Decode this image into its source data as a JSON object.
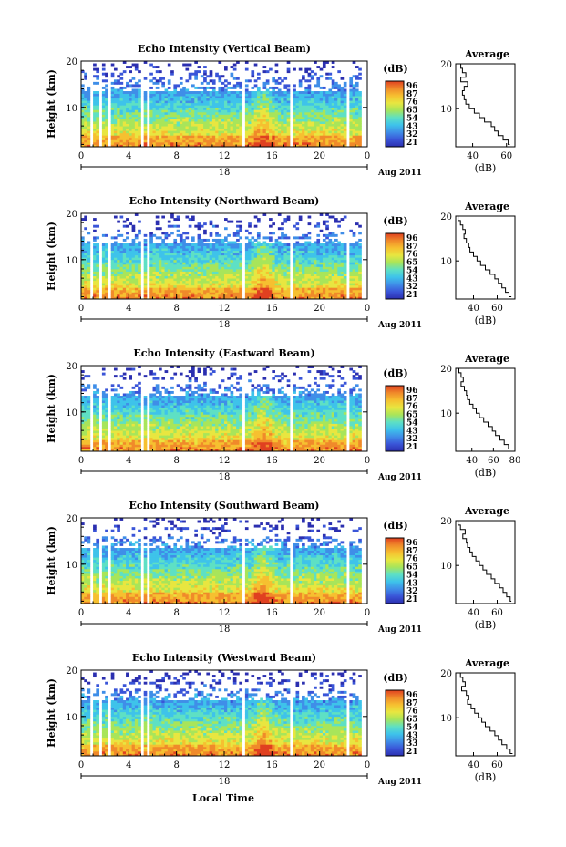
{
  "figure": {
    "xlabel": "Local Time",
    "date_label": "18",
    "month_label": "Aug 2011",
    "unit_label": "(dB)",
    "colors": {
      "stops": [
        "#2b2fb0",
        "#3a55d8",
        "#3f8ee8",
        "#3ec3ea",
        "#5ee0c4",
        "#a8e55a",
        "#e8e640",
        "#f6c030",
        "#f08a2a",
        "#e04020"
      ]
    }
  },
  "chart_data": [
    {
      "type": "heatmap",
      "title": "Echo Intensity (Vertical Beam)",
      "ylabel": "Height (km)",
      "x_ticks": [
        "0",
        "4",
        "8",
        "12",
        "16",
        "20",
        "0"
      ],
      "xlim": [
        0,
        24
      ],
      "y_ticks": [
        "20",
        "10"
      ],
      "ylim": [
        1.5,
        20
      ],
      "colorbar_ticks": [
        "96",
        "87",
        "76",
        "65",
        "54",
        "43",
        "32",
        "21"
      ],
      "gaps_hours": [
        [
          0.75,
          1.0
        ],
        [
          1.5,
          1.7
        ],
        [
          2.35,
          2.55
        ],
        [
          4.4,
          4.6
        ],
        [
          5.0,
          5.2
        ],
        [
          5.5,
          5.7
        ],
        [
          13.55,
          13.85
        ],
        [
          17.4,
          17.7
        ],
        [
          22.3,
          22.55
        ],
        [
          23.6,
          24.0
        ]
      ],
      "profile": {
        "title": "Average",
        "xlabel": "(dB)",
        "x_ticks": [
          "40",
          "60"
        ],
        "xlim": [
          30,
          65
        ],
        "y_ticks": [
          "20",
          "10"
        ],
        "ylim": [
          1.5,
          20
        ],
        "height_km": [
          20,
          19,
          18,
          17,
          16,
          15,
          14,
          13,
          12,
          11,
          10,
          9,
          8,
          7,
          6,
          5,
          4,
          3,
          2
        ],
        "average_db": [
          33,
          34,
          36,
          33,
          37,
          35,
          34,
          35,
          36,
          38,
          41,
          44,
          47,
          51,
          53,
          55,
          58,
          61,
          62
        ]
      }
    },
    {
      "type": "heatmap",
      "title": "Echo Intensity (Northward Beam)",
      "ylabel": "Height (km)",
      "x_ticks": [
        "0",
        "4",
        "8",
        "12",
        "16",
        "20",
        "0"
      ],
      "xlim": [
        0,
        24
      ],
      "y_ticks": [
        "20",
        "10"
      ],
      "ylim": [
        1.5,
        20
      ],
      "colorbar_ticks": [
        "96",
        "87",
        "76",
        "65",
        "54",
        "43",
        "32",
        "21"
      ],
      "gaps_hours": [
        [
          0.75,
          1.0
        ],
        [
          1.5,
          1.7
        ],
        [
          2.35,
          2.55
        ],
        [
          4.4,
          4.6
        ],
        [
          5.0,
          5.2
        ],
        [
          5.5,
          5.7
        ],
        [
          13.55,
          13.85
        ],
        [
          17.4,
          17.7
        ],
        [
          22.3,
          22.55
        ],
        [
          23.6,
          24.0
        ]
      ],
      "profile": {
        "title": "Average",
        "xlabel": "(dB)",
        "x_ticks": [
          "40",
          "60"
        ],
        "xlim": [
          25,
          75
        ],
        "y_ticks": [
          "20",
          "10"
        ],
        "ylim": [
          1.5,
          20
        ],
        "height_km": [
          20,
          19,
          18,
          17,
          16,
          15,
          14,
          13,
          12,
          11,
          10,
          9,
          8,
          7,
          6,
          5,
          4,
          3,
          2
        ],
        "average_db": [
          27,
          29,
          31,
          33,
          32,
          34,
          36,
          37,
          40,
          43,
          46,
          50,
          54,
          58,
          61,
          64,
          67,
          70,
          72
        ]
      }
    },
    {
      "type": "heatmap",
      "title": "Echo Intensity (Eastward Beam)",
      "ylabel": "Height (km)",
      "x_ticks": [
        "0",
        "4",
        "8",
        "12",
        "16",
        "20",
        "0"
      ],
      "xlim": [
        0,
        24
      ],
      "y_ticks": [
        "20",
        "10"
      ],
      "ylim": [
        1.5,
        20
      ],
      "colorbar_ticks": [
        "96",
        "87",
        "76",
        "65",
        "54",
        "43",
        "32",
        "21"
      ],
      "gaps_hours": [
        [
          0.75,
          1.0
        ],
        [
          1.5,
          1.7
        ],
        [
          2.35,
          2.55
        ],
        [
          4.4,
          4.6
        ],
        [
          5.0,
          5.2
        ],
        [
          5.5,
          5.7
        ],
        [
          13.55,
          13.85
        ],
        [
          17.4,
          17.7
        ],
        [
          22.3,
          22.55
        ],
        [
          23.6,
          24.0
        ]
      ],
      "profile": {
        "title": "Average",
        "xlabel": "(dB)",
        "x_ticks": [
          "40",
          "60",
          "80"
        ],
        "xlim": [
          25,
          80
        ],
        "y_ticks": [
          "20",
          "10"
        ],
        "ylim": [
          1.5,
          20
        ],
        "height_km": [
          20,
          19,
          18,
          17,
          16,
          15,
          14,
          13,
          12,
          11,
          10,
          9,
          8,
          7,
          6,
          5,
          4,
          3,
          2
        ],
        "average_db": [
          28,
          30,
          32,
          30,
          33,
          35,
          36,
          38,
          41,
          44,
          47,
          51,
          55,
          59,
          62,
          66,
          70,
          74,
          77
        ]
      }
    },
    {
      "type": "heatmap",
      "title": "Echo Intensity (Southward Beam)",
      "ylabel": "Height (km)",
      "x_ticks": [
        "0",
        "4",
        "8",
        "12",
        "16",
        "20",
        "0"
      ],
      "xlim": [
        0,
        24
      ],
      "y_ticks": [
        "20",
        "10"
      ],
      "ylim": [
        1.5,
        20
      ],
      "colorbar_ticks": [
        "96",
        "87",
        "76",
        "65",
        "54",
        "43",
        "32",
        "21"
      ],
      "gaps_hours": [
        [
          0.75,
          1.0
        ],
        [
          1.5,
          1.7
        ],
        [
          2.35,
          2.55
        ],
        [
          4.4,
          4.6
        ],
        [
          5.0,
          5.2
        ],
        [
          5.5,
          5.7
        ],
        [
          13.55,
          13.85
        ],
        [
          17.4,
          17.7
        ],
        [
          22.3,
          22.55
        ],
        [
          23.6,
          24.0
        ]
      ],
      "profile": {
        "title": "Average",
        "xlabel": "(dB)",
        "x_ticks": [
          "40",
          "60"
        ],
        "xlim": [
          25,
          75
        ],
        "y_ticks": [
          "20",
          "10"
        ],
        "ylim": [
          1.5,
          20
        ],
        "height_km": [
          20,
          19,
          18,
          17,
          16,
          15,
          14,
          13,
          12,
          11,
          10,
          9,
          8,
          7,
          6,
          5,
          4,
          3,
          2
        ],
        "average_db": [
          27,
          29,
          33,
          31,
          34,
          35,
          37,
          39,
          42,
          45,
          48,
          51,
          55,
          58,
          62,
          65,
          68,
          71,
          72
        ]
      }
    },
    {
      "type": "heatmap",
      "title": "Echo Intensity (Westward Beam)",
      "ylabel": "Height (km)",
      "x_ticks": [
        "0",
        "4",
        "8",
        "12",
        "16",
        "20",
        "0"
      ],
      "xlim": [
        0,
        24
      ],
      "y_ticks": [
        "20",
        "10"
      ],
      "ylim": [
        1.5,
        20
      ],
      "colorbar_ticks": [
        "96",
        "87",
        "76",
        "65",
        "54",
        "43",
        "33",
        "21"
      ],
      "gaps_hours": [
        [
          0.75,
          1.0
        ],
        [
          1.5,
          1.7
        ],
        [
          2.35,
          2.55
        ],
        [
          4.4,
          4.6
        ],
        [
          5.0,
          5.2
        ],
        [
          5.5,
          5.7
        ],
        [
          13.55,
          13.85
        ],
        [
          17.4,
          17.7
        ],
        [
          22.3,
          22.55
        ],
        [
          23.6,
          24.0
        ]
      ],
      "profile": {
        "title": "Average",
        "xlabel": "(dB)",
        "x_ticks": [
          "40",
          "60"
        ],
        "xlim": [
          25,
          75
        ],
        "y_ticks": [
          "20",
          "10"
        ],
        "ylim": [
          1.5,
          20
        ],
        "height_km": [
          20,
          19,
          18,
          17,
          16,
          15,
          14,
          13,
          12,
          11,
          10,
          9,
          8,
          7,
          6,
          5,
          4,
          3,
          2
        ],
        "average_db": [
          29,
          31,
          33,
          30,
          34,
          36,
          35,
          38,
          41,
          44,
          47,
          50,
          54,
          58,
          61,
          64,
          68,
          71,
          73
        ]
      }
    }
  ]
}
